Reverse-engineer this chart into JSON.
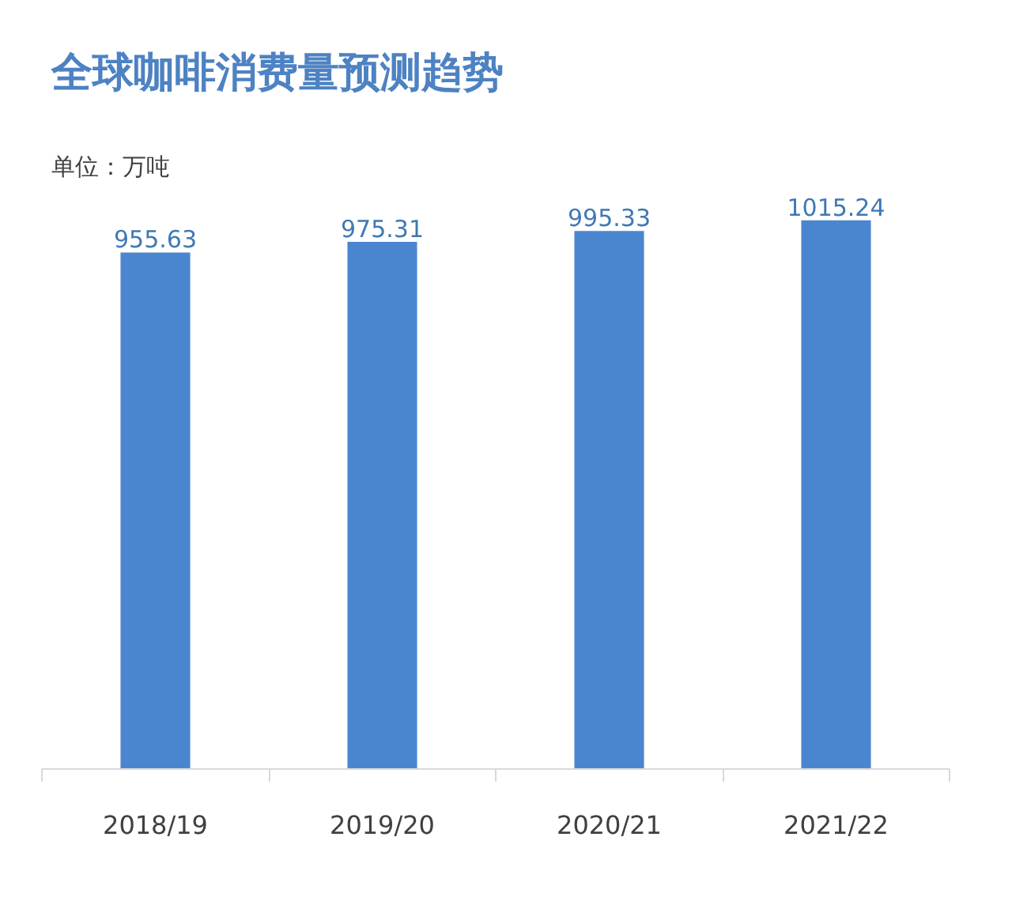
{
  "chart_data": {
    "type": "bar",
    "title": "全球咖啡消费量预测趋势",
    "subtitle": "单位：万吨",
    "categories": [
      "2018/19",
      "2019/20",
      "2020/21",
      "2021/22"
    ],
    "values": [
      955.63,
      975.31,
      995.33,
      1015.24
    ],
    "color": "#4a86d0",
    "data_labels": true,
    "grid": false
  }
}
